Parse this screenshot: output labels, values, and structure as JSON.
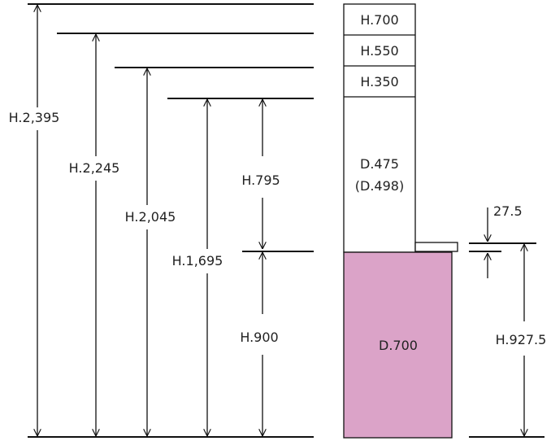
{
  "colors": {
    "line": "#111111",
    "lower_fill": "#dba3c8",
    "background": "#ffffff"
  },
  "dimensions": {
    "total": "H.2,395",
    "second": "H.2,245",
    "third": "H.2,045",
    "fourth": "H.1,695",
    "upper_gap": "H.795",
    "lower_height": "H.900",
    "right_height": "H.927.5",
    "gap": "27.5"
  },
  "cabinet": {
    "top_boxes": [
      "H.700",
      "H.550",
      "H.350"
    ],
    "upper_depth": "D.475",
    "upper_depth_alt": "(D.498)",
    "lower_depth": "D.700"
  }
}
